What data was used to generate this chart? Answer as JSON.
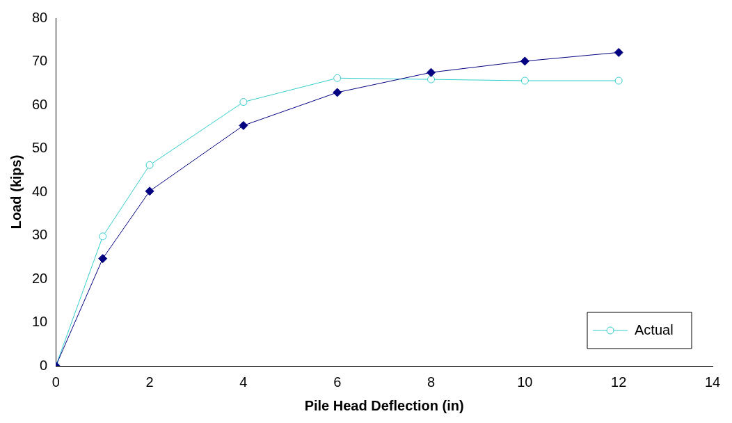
{
  "chart_data": {
    "type": "line",
    "xlabel": "Pile Head Deflection (in)",
    "ylabel": "Load (kips)",
    "xlim": [
      0,
      14
    ],
    "xticks": [
      0,
      2,
      4,
      6,
      8,
      10,
      12,
      14
    ],
    "ylim": [
      0,
      80
    ],
    "yticks": [
      0,
      10,
      20,
      30,
      40,
      50,
      60,
      70,
      80
    ],
    "grid": false,
    "legend": "bottom right",
    "series": [
      {
        "color": "#000080",
        "marker": "diamond",
        "x": [
          0,
          1,
          2,
          4,
          6,
          8,
          10,
          12
        ],
        "values": [
          0,
          24.7,
          40.2,
          55.3,
          62.9,
          67.5,
          70.1,
          72.1
        ]
      },
      {
        "name": "Actual",
        "color": "#33cccc",
        "marker": "circle",
        "x": [
          0,
          1,
          2,
          4,
          6,
          8,
          10,
          12
        ],
        "values": [
          0,
          29.8,
          46.2,
          60.7,
          66.2,
          65.9,
          65.6,
          65.6
        ]
      }
    ]
  }
}
